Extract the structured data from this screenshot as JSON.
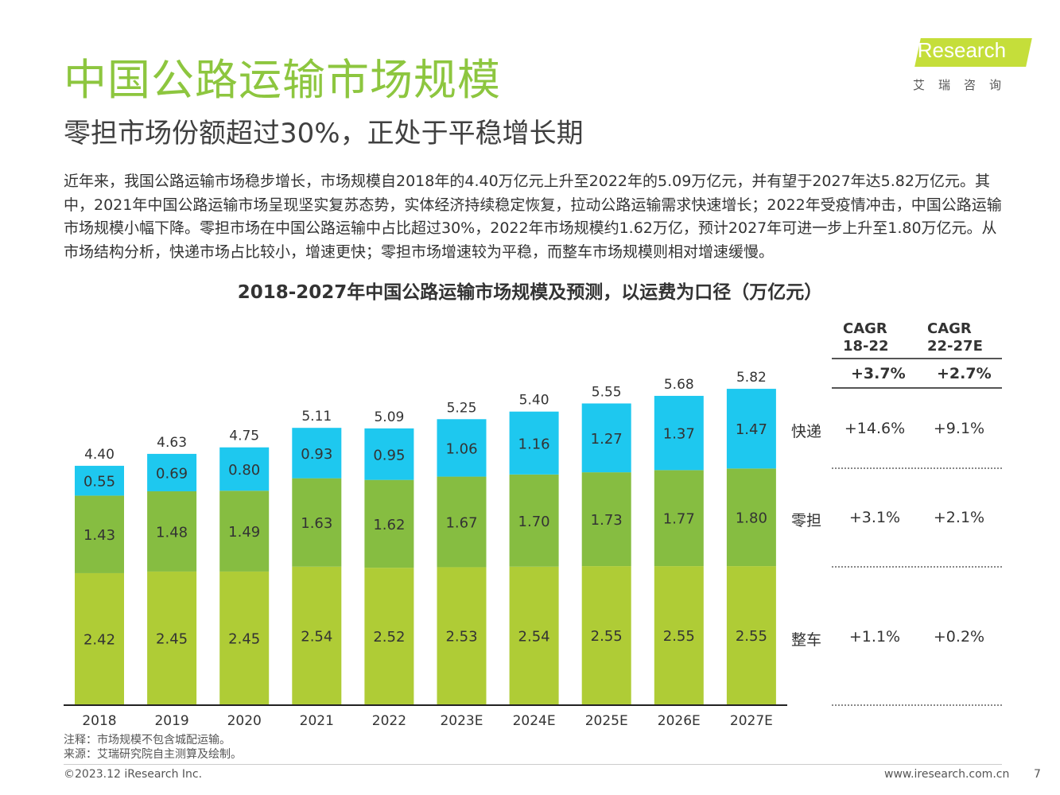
{
  "header": {
    "title": "中国公路运输市场规模",
    "subtitle": "零担市场份额超过30%，正处于平稳增长期"
  },
  "logo": {
    "text": "iResearch",
    "sub": "艾瑞咨询"
  },
  "intro": "近年来，我国公路运输市场稳步增长，市场规模自2018年的4.40万亿元上升至2022年的5.09万亿元，并有望于2027年达5.82万亿元。其中，2021年中国公路运输市场呈现坚实复苏态势，实体经济持续稳定恢复，拉动公路运输需求快速增长；2022年受疫情冲击，中国公路运输市场规模小幅下降。零担市场在中国公路运输中占比超过30%，2022年市场规模约1.62万亿，预计2027年可进一步上升至1.80万亿元。从市场结构分析，快递市场占比较小，增速更快；零担市场增速较为平稳，而整车市场规模则相对增速缓慢。",
  "chart_data": {
    "type": "bar",
    "stacked": true,
    "title": "2018-2027年中国公路运输市场规模及预测，以运费为口径（万亿元）",
    "categories": [
      "2018",
      "2019",
      "2020",
      "2021",
      "2022",
      "2023E",
      "2024E",
      "2025E",
      "2026E",
      "2027E"
    ],
    "series": [
      {
        "name": "整车",
        "color": "#AFCC36",
        "values": [
          2.42,
          2.45,
          2.45,
          2.54,
          2.52,
          2.53,
          2.54,
          2.55,
          2.55,
          2.55
        ]
      },
      {
        "name": "零担",
        "color": "#86BD41",
        "values": [
          1.43,
          1.48,
          1.49,
          1.63,
          1.62,
          1.67,
          1.7,
          1.73,
          1.77,
          1.8
        ]
      },
      {
        "name": "快递",
        "color": "#1EC8EF",
        "values": [
          0.55,
          0.69,
          0.8,
          0.93,
          0.95,
          1.06,
          1.16,
          1.27,
          1.37,
          1.47
        ]
      }
    ],
    "totals": [
      4.4,
      4.63,
      4.75,
      5.11,
      5.09,
      5.25,
      5.4,
      5.55,
      5.68,
      5.82
    ],
    "ylim": [
      0,
      6.9
    ],
    "grid": false
  },
  "cagr": {
    "headers": [
      [
        "CAGR",
        "18-22"
      ],
      [
        "CAGR",
        "22-27E"
      ]
    ],
    "overall": [
      "+3.7%",
      "+2.7%"
    ],
    "rows": [
      {
        "name": "快递",
        "values": [
          "+14.6%",
          "+9.1%"
        ]
      },
      {
        "name": "零担",
        "values": [
          "+3.1%",
          "+2.1%"
        ]
      },
      {
        "name": "整车",
        "values": [
          "+1.1%",
          "+0.2%"
        ]
      }
    ]
  },
  "notes": {
    "note": "注释：市场规模不包含城配运输。",
    "source": "来源：艾瑞研究院自主测算及绘制。"
  },
  "footer": {
    "copyright": "©2023.12 iResearch Inc.",
    "website": "www.iresearch.com.cn",
    "page": "7"
  }
}
